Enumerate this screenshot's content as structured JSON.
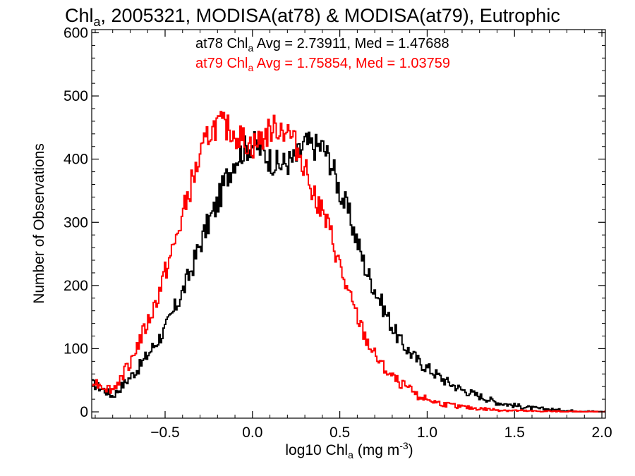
{
  "chart_data": {
    "type": "histogram",
    "title": {
      "prefix": "Chl",
      "sub": "a",
      "rest": ", 2005321, MODISA(at78) & MODISA(at79), Eutrophic"
    },
    "xlabel": {
      "pre": "log10 Chl",
      "sub": "a",
      "post": " (mg m",
      "sup": "-3",
      "end": ")"
    },
    "ylabel": "Number of Observations",
    "xlim": [
      -0.92,
      2.02
    ],
    "ylim": [
      -10,
      605
    ],
    "x_ticks": [
      -0.5,
      0.0,
      0.5,
      1.0,
      1.5,
      2.0
    ],
    "x_tick_labels": [
      "−0.5",
      "0.0",
      "0.5",
      "1.0",
      "1.5",
      "2.0"
    ],
    "y_ticks": [
      0,
      100,
      200,
      300,
      400,
      500,
      600
    ],
    "y_tick_labels": [
      "0",
      "100",
      "200",
      "300",
      "400",
      "500",
      "600"
    ],
    "legend_position": "top-center",
    "series": [
      {
        "color": "#000000",
        "label": {
          "pre": "at78 Chl",
          "sub": "a",
          "post": " Avg = 2.73911, Med = 1.47688"
        },
        "x": [
          -0.92,
          -0.85,
          -0.8,
          -0.75,
          -0.7,
          -0.65,
          -0.6,
          -0.55,
          -0.5,
          -0.45,
          -0.4,
          -0.35,
          -0.3,
          -0.25,
          -0.2,
          -0.15,
          -0.1,
          -0.05,
          0.0,
          0.05,
          0.1,
          0.15,
          0.2,
          0.25,
          0.3,
          0.35,
          0.4,
          0.45,
          0.5,
          0.55,
          0.6,
          0.65,
          0.7,
          0.75,
          0.8,
          0.85,
          0.9,
          0.95,
          1.0,
          1.05,
          1.1,
          1.15,
          1.2,
          1.25,
          1.3,
          1.35,
          1.4,
          1.5,
          1.6,
          1.7,
          1.8,
          1.9,
          2.0
        ],
        "y": [
          45,
          35,
          25,
          40,
          55,
          70,
          90,
          110,
          130,
          160,
          190,
          225,
          265,
          300,
          330,
          370,
          400,
          415,
          425,
          415,
          400,
          390,
          395,
          400,
          425,
          420,
          420,
          395,
          350,
          315,
          270,
          225,
          195,
          165,
          135,
          110,
          95,
          80,
          70,
          60,
          50,
          42,
          35,
          30,
          25,
          20,
          15,
          10,
          6,
          4,
          2,
          1,
          0
        ]
      },
      {
        "color": "#ff0000",
        "label": {
          "pre": "at79 Chl",
          "sub": "a",
          "post": " Avg = 1.75854, Med = 1.03759"
        },
        "x": [
          -0.92,
          -0.85,
          -0.8,
          -0.75,
          -0.7,
          -0.65,
          -0.6,
          -0.55,
          -0.5,
          -0.45,
          -0.4,
          -0.35,
          -0.3,
          -0.25,
          -0.2,
          -0.15,
          -0.1,
          -0.05,
          0.0,
          0.05,
          0.1,
          0.15,
          0.2,
          0.25,
          0.3,
          0.35,
          0.4,
          0.45,
          0.5,
          0.55,
          0.6,
          0.65,
          0.7,
          0.75,
          0.8,
          0.85,
          0.9,
          0.95,
          1.0,
          1.05,
          1.1,
          1.15,
          1.2,
          1.25,
          1.3,
          1.35,
          1.4,
          1.5,
          1.6,
          1.7,
          1.8,
          1.9,
          2.0
        ],
        "y": [
          50,
          40,
          35,
          55,
          80,
          110,
          140,
          175,
          220,
          260,
          310,
          360,
          400,
          440,
          455,
          450,
          440,
          430,
          420,
          430,
          445,
          450,
          445,
          420,
          390,
          350,
          315,
          280,
          230,
          185,
          150,
          115,
          90,
          70,
          55,
          45,
          35,
          25,
          20,
          15,
          12,
          10,
          8,
          6,
          5,
          4,
          3,
          2,
          1,
          1,
          0,
          0,
          0
        ]
      }
    ]
  }
}
